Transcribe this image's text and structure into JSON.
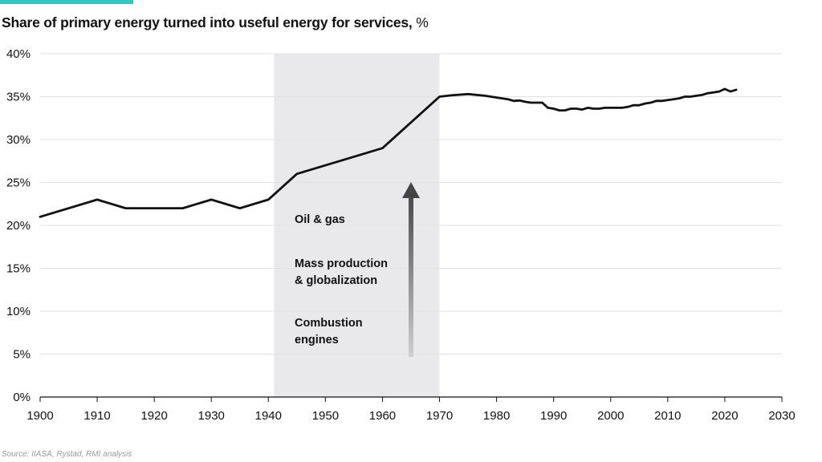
{
  "title": "Share of primary energy turned into useful energy for services,",
  "title_unit": "%",
  "source": "Source: IIASA, Rystad, RMI analysis",
  "colors": {
    "accent": "#2ec7c4",
    "line": "#111111",
    "highlight": "#e9e9eb",
    "grid": "#e2e2e2",
    "axis": "#111111"
  },
  "chart_data": {
    "type": "line",
    "title": "Share of primary energy turned into useful energy for services, %",
    "xlabel": "",
    "ylabel": "",
    "xlim": [
      1900,
      2030
    ],
    "ylim": [
      0,
      40
    ],
    "x_ticks": [
      1900,
      1910,
      1920,
      1930,
      1940,
      1950,
      1960,
      1970,
      1980,
      1990,
      2000,
      2010,
      2020,
      2030
    ],
    "y_ticks": [
      0,
      5,
      10,
      15,
      20,
      25,
      30,
      35,
      40
    ],
    "y_tick_labels": [
      "0%",
      "5%",
      "10%",
      "15%",
      "20%",
      "25%",
      "30%",
      "35%",
      "40%"
    ],
    "grid": "horizontal",
    "highlight_band": {
      "x_start": 1941,
      "x_end": 1970
    },
    "annotations": [
      {
        "label": "Oil & gas"
      },
      {
        "label": "Mass production\n& globalization"
      },
      {
        "label": "Combustion\nengines"
      }
    ],
    "series": [
      {
        "x": [
          1900,
          1910,
          1915,
          1925,
          1930,
          1935,
          1940,
          1945,
          1960,
          1970,
          1972,
          1975,
          1978,
          1980,
          1982,
          1983,
          1984,
          1985,
          1986,
          1988,
          1989,
          1990,
          1991,
          1992,
          1993,
          1994,
          1995,
          1996,
          1997,
          1998,
          1999,
          2000,
          2001,
          2002,
          2003,
          2004,
          2005,
          2006,
          2007,
          2008,
          2009,
          2010,
          2011,
          2012,
          2013,
          2014,
          2015,
          2016,
          2017,
          2018,
          2019,
          2020,
          2021,
          2022
        ],
        "values": [
          21,
          23,
          22,
          22,
          23,
          22,
          23,
          26,
          29,
          35,
          35.15,
          35.3,
          35.1,
          34.9,
          34.7,
          34.5,
          34.55,
          34.4,
          34.3,
          34.3,
          33.7,
          33.6,
          33.4,
          33.4,
          33.6,
          33.6,
          33.5,
          33.7,
          33.6,
          33.6,
          33.7,
          33.7,
          33.7,
          33.7,
          33.8,
          34.0,
          34.0,
          34.2,
          34.3,
          34.5,
          34.5,
          34.6,
          34.7,
          34.8,
          35.0,
          35.0,
          35.1,
          35.2,
          35.4,
          35.5,
          35.6,
          35.9,
          35.6,
          35.8
        ]
      }
    ]
  }
}
